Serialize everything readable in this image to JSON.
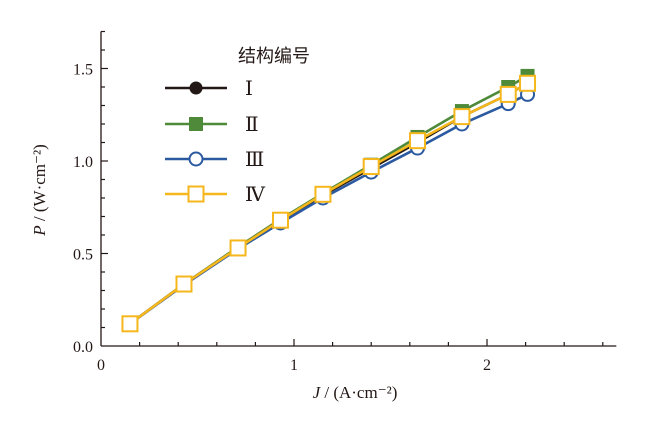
{
  "chart_data": {
    "type": "line",
    "title": "",
    "xlabel": "J / (A·cm⁻²)",
    "ylabel": "P / (W·cm⁻²)",
    "xlabel_var": "J",
    "xlabel_unit": " / (A·cm⁻²)",
    "ylabel_var": "P",
    "ylabel_unit": " / (W·cm⁻²)",
    "xlim": [
      0,
      2.67
    ],
    "ylim": [
      0,
      1.7
    ],
    "xticks": [
      0,
      1,
      2
    ],
    "xtick_labels": [
      "0",
      "1",
      "2"
    ],
    "yticks": [
      0,
      0.5,
      1.0,
      1.5
    ],
    "ytick_labels": [
      "0.0",
      "0.5",
      "1.0",
      "1.5"
    ],
    "grid": false,
    "legend_title": "结构编号",
    "legend_placement": "top-left",
    "x": [
      0.15,
      0.43,
      0.71,
      0.93,
      1.15,
      1.4,
      1.64,
      1.87,
      2.11,
      2.21
    ],
    "series": [
      {
        "name": "Ⅰ",
        "color": "#231815",
        "marker": "filled-circle",
        "values": [
          0.12,
          0.335,
          0.53,
          0.68,
          0.815,
          0.96,
          1.1,
          1.24,
          1.36,
          1.42
        ]
      },
      {
        "name": "Ⅱ",
        "color": "#4e8a3a",
        "marker": "filled-square",
        "values": [
          0.12,
          0.335,
          0.535,
          0.685,
          0.825,
          0.98,
          1.13,
          1.27,
          1.4,
          1.46
        ]
      },
      {
        "name": "Ⅲ",
        "color": "#2c5aa0",
        "marker": "open-circle",
        "values": [
          0.12,
          0.33,
          0.525,
          0.665,
          0.8,
          0.94,
          1.07,
          1.2,
          1.31,
          1.36
        ]
      },
      {
        "name": "Ⅳ",
        "color": "#f5b71c",
        "marker": "open-square",
        "values": [
          0.12,
          0.335,
          0.53,
          0.68,
          0.82,
          0.97,
          1.11,
          1.24,
          1.36,
          1.42
        ]
      }
    ]
  }
}
